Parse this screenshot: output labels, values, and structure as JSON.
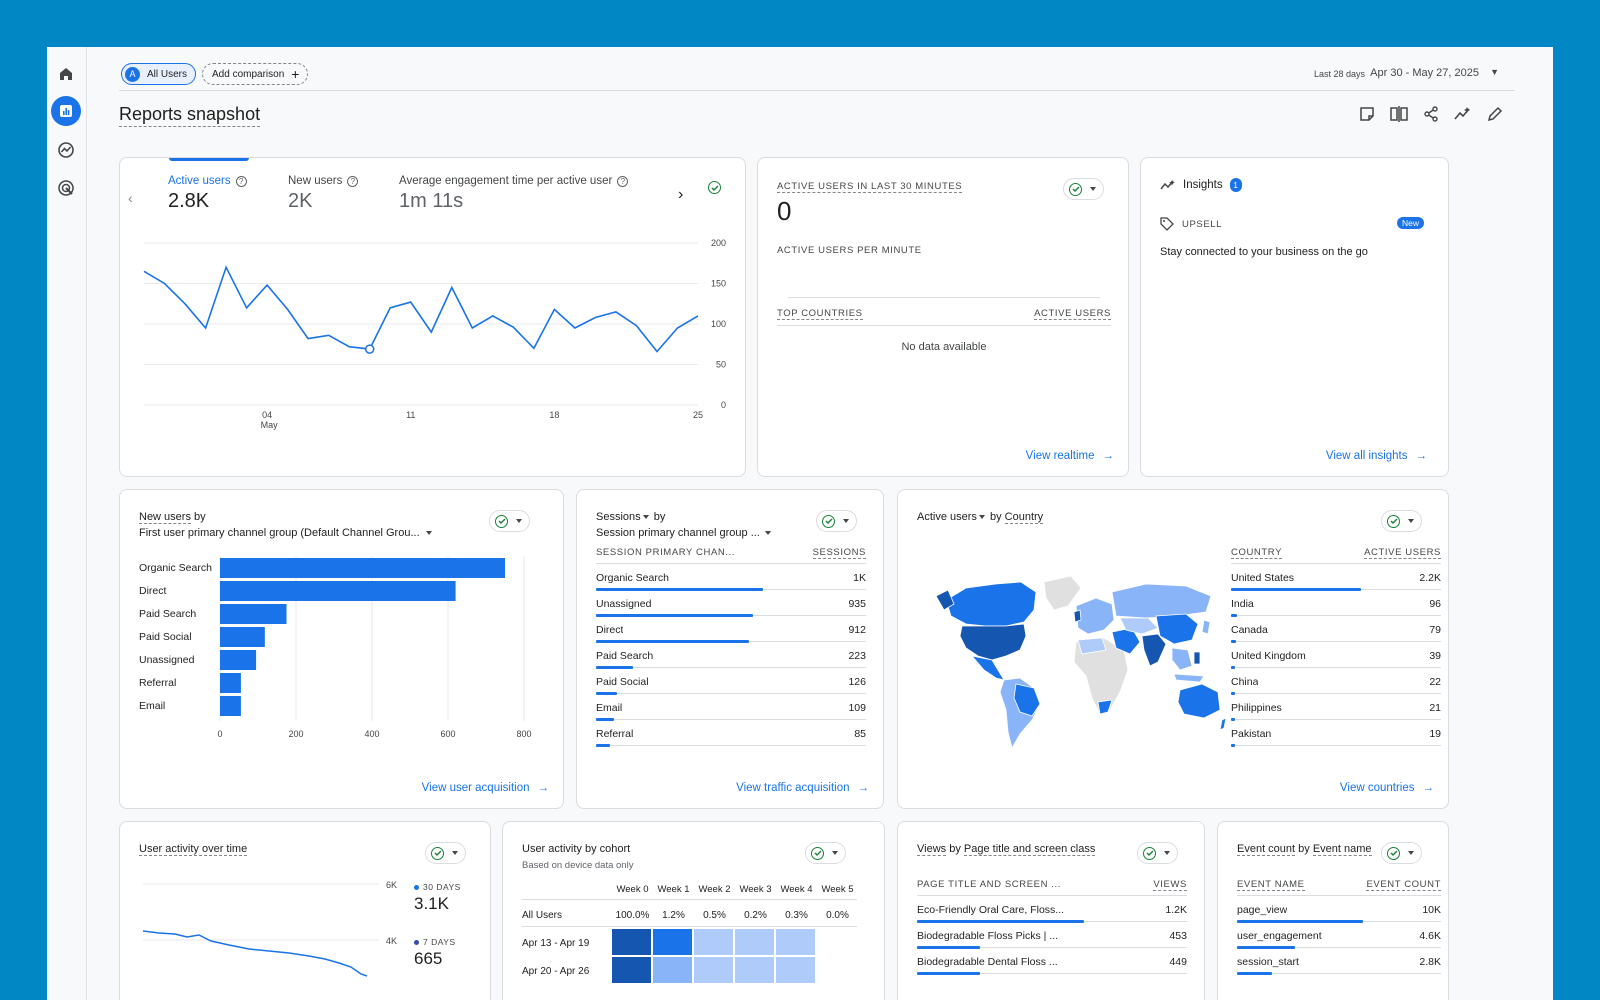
{
  "topbar": {
    "segment_letter": "A",
    "segment_label": "All Users",
    "add_comparison": "Add comparison",
    "date_range_label": "Last 28 days",
    "date_range_value": "Apr 30 - May 27, 2025"
  },
  "page_title": "Reports snapshot",
  "toolbar_icons": [
    "note-icon",
    "compare-icon",
    "share-icon",
    "insights-icon",
    "edit-icon"
  ],
  "rail_icons": [
    "home-icon",
    "reports-icon",
    "explore-icon",
    "advertising-icon"
  ],
  "overview": {
    "metrics": [
      {
        "label": "Active users",
        "value": "2.8K"
      },
      {
        "label": "New users",
        "value": "2K"
      },
      {
        "label": "Average engagement time per active user",
        "value": "1m 11s"
      }
    ],
    "chart_data": {
      "type": "line",
      "x_ticks": [
        "04",
        "11",
        "18",
        "25"
      ],
      "x_sub": "May",
      "y_ticks": [
        "200",
        "150",
        "100",
        "50",
        "0"
      ],
      "ylim": [
        0,
        200
      ],
      "x": [
        1,
        2,
        3,
        4,
        5,
        6,
        7,
        8,
        9,
        10,
        11,
        12,
        13,
        14,
        15,
        16,
        17,
        18,
        19,
        20,
        21,
        22,
        23,
        24,
        25,
        26,
        27,
        28
      ],
      "series": [
        {
          "values": [
            165,
            150,
            125,
            95,
            170,
            120,
            148,
            118,
            82,
            86,
            72,
            69,
            120,
            127,
            90,
            145,
            95,
            110,
            96,
            70,
            118,
            95,
            108,
            115,
            98,
            66,
            95,
            110
          ]
        }
      ],
      "highlight_index": 11
    }
  },
  "realtime": {
    "title": "ACTIVE USERS IN LAST 30 MINUTES",
    "value": "0",
    "per_minute": "ACTIVE USERS PER MINUTE",
    "col_country": "TOP COUNTRIES",
    "col_users": "ACTIVE USERS",
    "empty": "No data available",
    "link": "View realtime"
  },
  "insights": {
    "title": "Insights",
    "count": "1",
    "tag": "UPSELL",
    "badge": "New",
    "text": "Stay connected to your business on the go",
    "link": "View all insights"
  },
  "new_users": {
    "title_a": "New users",
    "title_b": " by",
    "subtitle": "First user primary channel group (Default Channel Grou...",
    "link": "View user acquisition",
    "chart_data": {
      "type": "bar",
      "orientation": "horizontal",
      "categories": [
        "Organic Search",
        "Direct",
        "Paid Search",
        "Paid Social",
        "Unassigned",
        "Referral",
        "Email"
      ],
      "values": [
        750,
        620,
        175,
        118,
        95,
        55,
        55
      ],
      "x_ticks": [
        "0",
        "200",
        "400",
        "600",
        "800"
      ],
      "xlim": [
        0,
        800
      ]
    }
  },
  "sessions": {
    "title_a": "Sessions",
    "title_b": " by",
    "subtitle": "Session primary channel group ...",
    "col_a": "SESSION PRIMARY CHAN...",
    "col_b": "SESSIONS",
    "link": "View traffic acquisition",
    "max": 1000,
    "rows": [
      {
        "name": "Organic Search",
        "value": "1K",
        "num": 1000
      },
      {
        "name": "Unassigned",
        "value": "935",
        "num": 935
      },
      {
        "name": "Direct",
        "value": "912",
        "num": 912
      },
      {
        "name": "Paid Search",
        "value": "223",
        "num": 223
      },
      {
        "name": "Paid Social",
        "value": "126",
        "num": 126
      },
      {
        "name": "Email",
        "value": "109",
        "num": 109
      },
      {
        "name": "Referral",
        "value": "85",
        "num": 85
      }
    ]
  },
  "country": {
    "title_a": "Active users",
    "title_b": " by ",
    "title_c": "Country",
    "col_a": "COUNTRY",
    "col_b": "ACTIVE USERS",
    "link": "View countries",
    "max": 2200,
    "rows": [
      {
        "name": "United States",
        "value": "2.2K",
        "num": 2200
      },
      {
        "name": "India",
        "value": "96",
        "num": 96
      },
      {
        "name": "Canada",
        "value": "79",
        "num": 79
      },
      {
        "name": "United Kingdom",
        "value": "39",
        "num": 39
      },
      {
        "name": "China",
        "value": "22",
        "num": 22
      },
      {
        "name": "Philippines",
        "value": "21",
        "num": 21
      },
      {
        "name": "Pakistan",
        "value": "19",
        "num": 19
      }
    ],
    "colors": {
      "dark": "#1557b0",
      "mid": "#1a73e8",
      "light": "#8ab4f8",
      "lighter": "#aecbfa",
      "none": "#e0e0e0"
    }
  },
  "activity": {
    "title": "User activity over time",
    "y_ticks": [
      "6K",
      "4K"
    ],
    "legend": [
      {
        "label": "30 DAYS",
        "value": "3.1K"
      },
      {
        "label": "7 DAYS",
        "value": "665"
      }
    ]
  },
  "cohort": {
    "title": "User activity by cohort",
    "subtitle": "Based on device data only",
    "weeks": [
      "Week 0",
      "Week 1",
      "Week 2",
      "Week 3",
      "Week 4",
      "Week 5"
    ],
    "all_label": "All Users",
    "all_values": [
      "100.0%",
      "1.2%",
      "0.5%",
      "0.2%",
      "0.3%",
      "0.0%"
    ],
    "rows": [
      {
        "label": "Apr 13 - Apr 19"
      },
      {
        "label": "Apr 20 - Apr 26"
      }
    ]
  },
  "views": {
    "title_a": "Views",
    "title_b": " by ",
    "title_c": "Page title and screen class",
    "col_a": "PAGE TITLE AND SCREEN ...",
    "col_b": "VIEWS",
    "max": 1200,
    "rows": [
      {
        "name": "Eco-Friendly Oral Care, Floss...",
        "value": "1.2K",
        "num": 1200
      },
      {
        "name": "Biodegradable Floss Picks | ...",
        "value": "453",
        "num": 453
      },
      {
        "name": "Biodegradable Dental Floss ...",
        "value": "449",
        "num": 449
      }
    ]
  },
  "events": {
    "title_a": "Event count",
    "title_b": " by ",
    "title_c": "Event name",
    "col_a": "EVENT NAME",
    "col_b": "EVENT COUNT",
    "max": 10000,
    "rows": [
      {
        "name": "page_view",
        "value": "10K",
        "num": 10000
      },
      {
        "name": "user_engagement",
        "value": "4.6K",
        "num": 4600
      },
      {
        "name": "session_start",
        "value": "2.8K",
        "num": 2800
      }
    ]
  }
}
